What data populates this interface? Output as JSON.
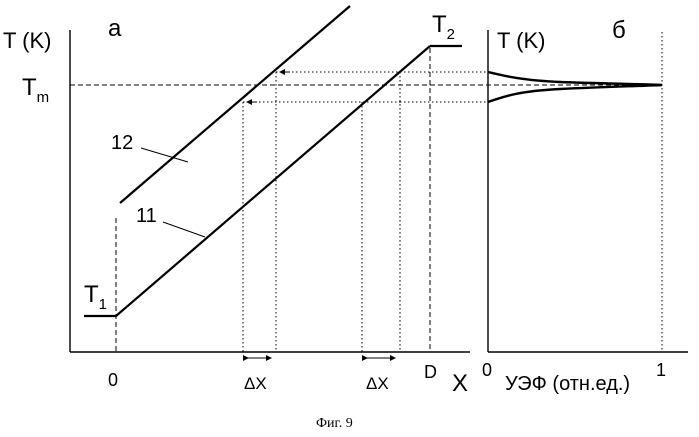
{
  "panel_a": {
    "letter": "а",
    "y_axis_label": "T (K)",
    "x_axis_label": "X",
    "t1_label": "T",
    "t1_sub": "1",
    "t2_label": "T",
    "t2_sub": "2",
    "tm_label": "T",
    "tm_sub": "m",
    "curve_12_label": "12",
    "curve_11_label": "11",
    "tick_zero": "0",
    "tick_d": "D",
    "delta_x_left": "ΔX",
    "delta_x_right": "ΔX"
  },
  "panel_b": {
    "letter": "б",
    "y_axis_label": "T (K)",
    "x_axis_label": "УЭФ (отн.ед.)",
    "tick_zero": "0",
    "tick_one": "1"
  },
  "caption": "Фиг. 9"
}
